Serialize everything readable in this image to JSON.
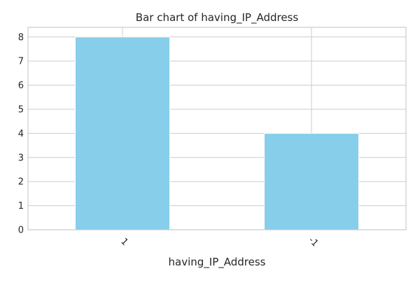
{
  "chart_data": {
    "type": "bar",
    "title": "Bar chart of having_IP_Address",
    "xlabel": "having_IP_Address",
    "ylabel": "",
    "categories": [
      "1",
      "-1"
    ],
    "values": [
      8,
      4
    ],
    "ylim": [
      0,
      8.4
    ],
    "yticks": [
      "0",
      "1",
      "2",
      "3",
      "4",
      "5",
      "6",
      "7",
      "8"
    ],
    "grid": true,
    "legend": "none",
    "bar_color": "#87CEEB",
    "grid_color": "#cccccc",
    "axes_edge_color": "#cccccc"
  }
}
